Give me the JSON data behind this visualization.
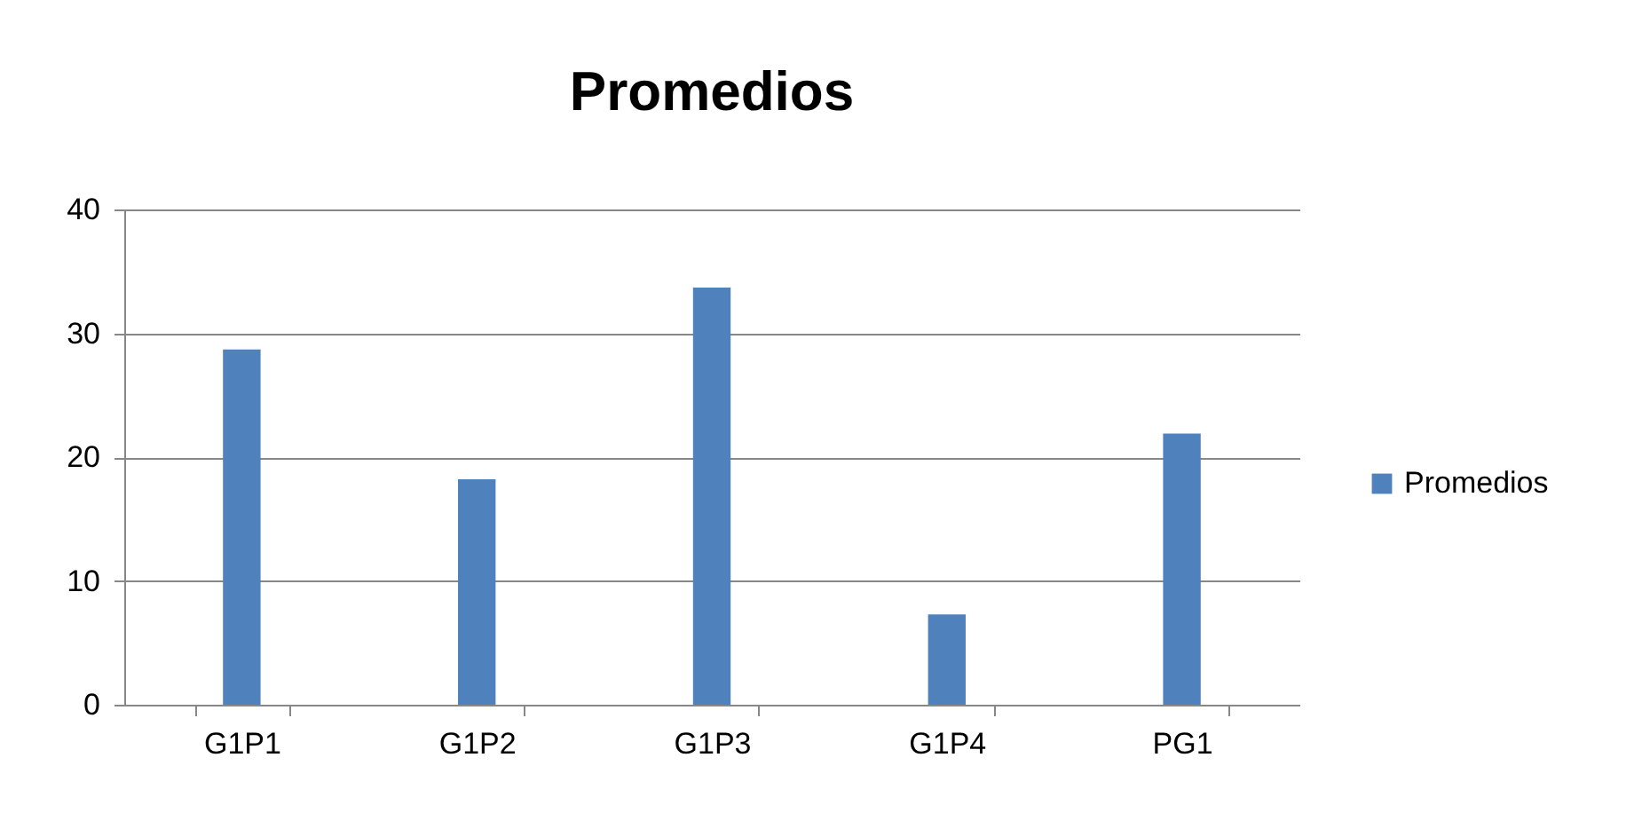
{
  "chart_data": {
    "type": "bar",
    "title": "Promedios",
    "categories": [
      "G1P1",
      "G1P2",
      "G1P3",
      "G1P4",
      "PG1"
    ],
    "series": [
      {
        "name": "Promedios",
        "color": "#4f81bd",
        "values": [
          28.7,
          18.2,
          33.7,
          7.3,
          21.9
        ]
      }
    ],
    "ylim": [
      0,
      40
    ],
    "yticks": [
      0,
      10,
      20,
      30,
      40
    ],
    "grid": "y",
    "legend": "right"
  }
}
